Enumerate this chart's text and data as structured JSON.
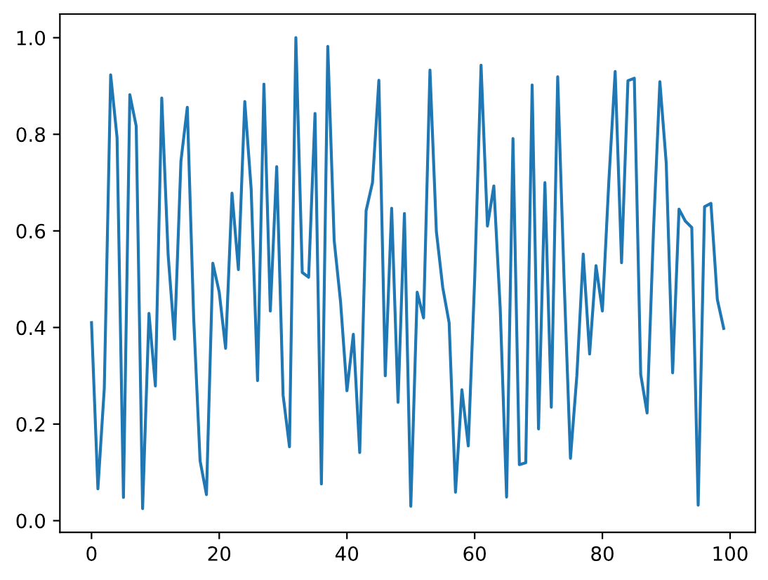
{
  "chart_data": {
    "type": "line",
    "x": [
      0,
      1,
      2,
      3,
      4,
      5,
      6,
      7,
      8,
      9,
      10,
      11,
      12,
      13,
      14,
      15,
      16,
      17,
      18,
      19,
      20,
      21,
      22,
      23,
      24,
      25,
      26,
      27,
      28,
      29,
      30,
      31,
      32,
      33,
      34,
      35,
      36,
      37,
      38,
      39,
      40,
      41,
      42,
      43,
      44,
      45,
      46,
      47,
      48,
      49,
      50,
      51,
      52,
      53,
      54,
      55,
      56,
      57,
      58,
      59,
      60,
      61,
      62,
      63,
      64,
      65,
      66,
      67,
      68,
      69,
      70,
      71,
      72,
      73,
      74,
      75,
      76,
      77,
      78,
      79,
      80,
      81,
      82,
      83,
      84,
      85,
      86,
      87,
      88,
      89,
      90,
      91,
      92,
      93,
      94,
      95,
      96,
      97,
      98,
      99
    ],
    "series": [
      {
        "color": "#1f77b4",
        "values": [
          0.41,
          0.066,
          0.274,
          0.923,
          0.793,
          0.048,
          0.882,
          0.817,
          0.025,
          0.429,
          0.279,
          0.875,
          0.55,
          0.376,
          0.744,
          0.856,
          0.42,
          0.124,
          0.054,
          0.533,
          0.473,
          0.357,
          0.678,
          0.52,
          0.868,
          0.687,
          0.29,
          0.904,
          0.434,
          0.733,
          0.26,
          0.153,
          1.0,
          0.514,
          0.504,
          0.843,
          0.076,
          0.982,
          0.58,
          0.453,
          0.269,
          0.386,
          0.141,
          0.642,
          0.7,
          0.912,
          0.3,
          0.647,
          0.245,
          0.636,
          0.03,
          0.473,
          0.42,
          0.933,
          0.599,
          0.483,
          0.41,
          0.059,
          0.271,
          0.155,
          0.5,
          0.943,
          0.61,
          0.693,
          0.44,
          0.049,
          0.791,
          0.116,
          0.12,
          0.902,
          0.19,
          0.7,
          0.235,
          0.919,
          0.5,
          0.129,
          0.3,
          0.552,
          0.345,
          0.528,
          0.434,
          0.7,
          0.93,
          0.534,
          0.911,
          0.916,
          0.303,
          0.223,
          0.6,
          0.909,
          0.74,
          0.306,
          0.645,
          0.62,
          0.607,
          0.032,
          0.65,
          0.657,
          0.458,
          0.398
        ]
      }
    ],
    "xlim": [
      -4.95,
      103.95
    ],
    "ylim": [
      -0.024,
      1.049
    ],
    "xticks": [
      0,
      20,
      40,
      60,
      80,
      100
    ],
    "yticks": [
      {
        "value": 0,
        "label": "0.0"
      },
      {
        "value": 0.2,
        "label": "0.2"
      },
      {
        "value": 0.4,
        "label": "0.4"
      },
      {
        "value": 0.6,
        "label": "0.6"
      },
      {
        "value": 0.8,
        "label": "0.8"
      },
      {
        "value": 1.0,
        "label": "1.0"
      }
    ],
    "line_style": "solid"
  }
}
